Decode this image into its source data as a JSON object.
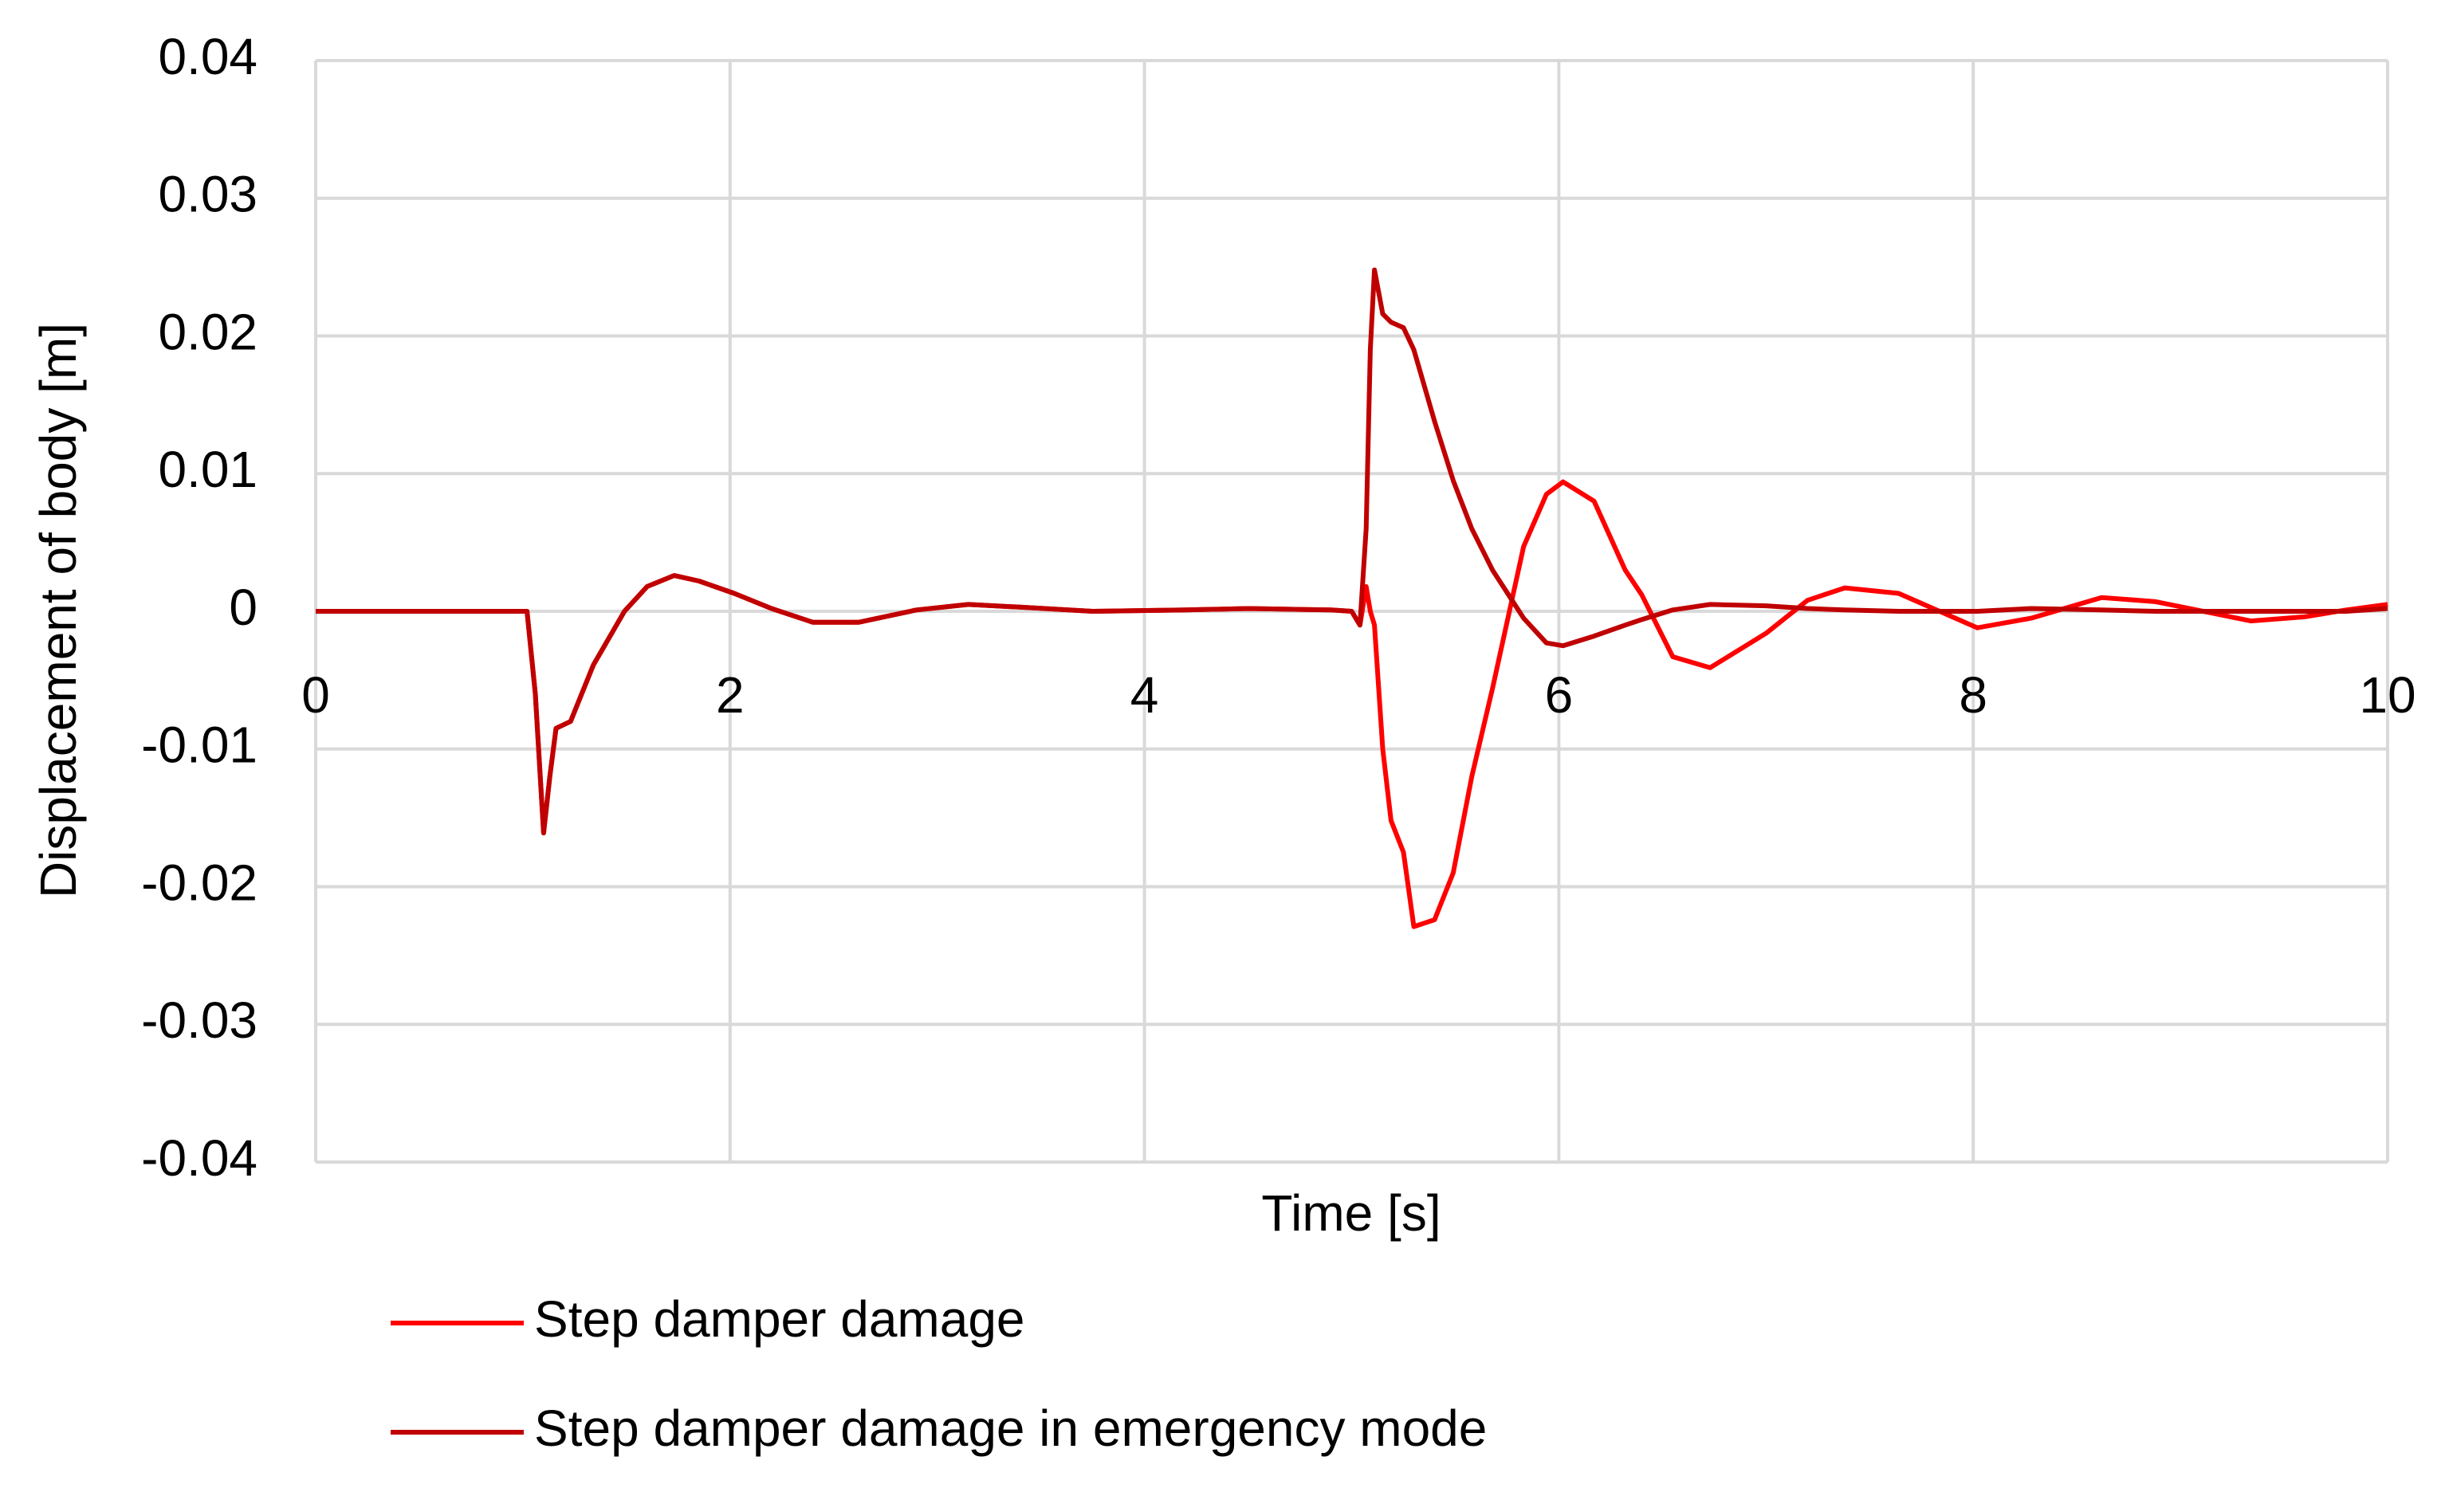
{
  "chart_data": {
    "type": "line",
    "xlabel": "Time [s]",
    "ylabel": "Displacement of body [m]",
    "x": [
      0,
      1.0,
      1.02,
      1.06,
      1.1,
      1.13,
      1.16,
      1.23,
      1.34,
      1.49,
      1.6,
      1.73,
      1.85,
      2.02,
      2.2,
      2.4,
      2.62,
      2.9,
      3.15,
      3.4,
      3.75,
      4.2,
      4.5,
      4.9,
      5.0,
      5.04,
      5.07,
      5.09,
      5.11,
      5.15,
      5.19,
      5.25,
      5.3,
      5.4,
      5.49,
      5.58,
      5.68,
      5.83,
      5.94,
      6.02,
      6.17,
      6.32,
      6.4,
      6.55,
      6.73,
      7.0,
      7.2,
      7.38,
      7.64,
      8.02,
      8.28,
      8.62,
      8.88,
      9.34,
      9.6,
      9.8,
      10
    ],
    "series": [
      {
        "name": "Step damper damage",
        "color": "#ff0000",
        "values": [
          0,
          0,
          0,
          -0.006,
          -0.0161,
          -0.012,
          -0.0085,
          -0.008,
          -0.0039,
          0,
          0.0018,
          0.0026,
          0.0022,
          0.0013,
          0.0002,
          -0.0008,
          -0.0008,
          0.0001,
          0.0005,
          0.0003,
          0,
          0.0001,
          0.0002,
          0.0001,
          0,
          -0.001,
          0.0018,
          0,
          -0.001,
          -0.01,
          -0.0152,
          -0.0175,
          -0.0229,
          -0.0224,
          -0.019,
          -0.012,
          -0.0056,
          0.0047,
          0.0085,
          0.0094,
          0.008,
          0.003,
          0.0012,
          -0.0033,
          -0.0041,
          -0.0016,
          0.0008,
          0.0017,
          0.0013,
          -0.0012,
          -0.0005,
          0.001,
          0.0007,
          -0.0007,
          -0.0004,
          0.0001,
          0.0005
        ]
      },
      {
        "name": "Step damper damage in emergency mode",
        "color": "#c00000",
        "values": [
          0,
          0,
          0,
          -0.006,
          -0.0161,
          -0.012,
          -0.0085,
          -0.008,
          -0.0039,
          0,
          0.0018,
          0.0026,
          0.0022,
          0.0013,
          0.0002,
          -0.0008,
          -0.0008,
          0.0001,
          0.0005,
          0.0003,
          0,
          0.0001,
          0.0002,
          0.0001,
          0,
          -0.001,
          0.006,
          0.019,
          0.0248,
          0.0216,
          0.021,
          0.0206,
          0.019,
          0.0138,
          0.0095,
          0.006,
          0.003,
          -0.0005,
          -0.0023,
          -0.0025,
          -0.0018,
          -0.001,
          -0.0006,
          0.0001,
          0.0005,
          0.0004,
          0.0002,
          0.0001,
          0,
          0,
          0.0002,
          0.0001,
          0,
          0,
          0,
          0,
          0.0002
        ]
      }
    ],
    "xlim": [
      0,
      10
    ],
    "xticks": [
      0,
      2,
      4,
      6,
      8,
      10
    ],
    "ylim": [
      -0.04,
      0.04
    ],
    "yticks": [
      -0.04,
      -0.03,
      -0.02,
      -0.01,
      0,
      0.01,
      0.02,
      0.03,
      0.04
    ],
    "grid": true,
    "legend": "bottom"
  }
}
